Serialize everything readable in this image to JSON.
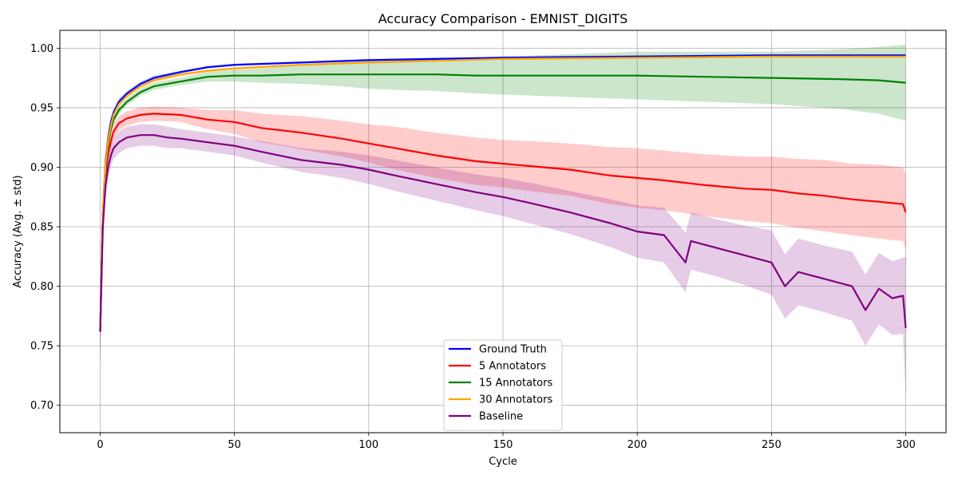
{
  "chart_data": {
    "type": "line",
    "title": "Accuracy Comparison - EMNIST_DIGITS",
    "xlabel": "Cycle",
    "ylabel": "Accuracy (Avg. ± std)",
    "xlim": [
      -15,
      315
    ],
    "ylim": [
      0.677,
      1.015
    ],
    "xticks": [
      0,
      50,
      100,
      150,
      200,
      250,
      300
    ],
    "yticks": [
      0.7,
      0.75,
      0.8,
      0.85,
      0.9,
      0.95,
      1.0
    ],
    "ytick_labels": [
      "0.70",
      "0.75",
      "0.80",
      "0.85",
      "0.90",
      "0.95",
      "1.00"
    ],
    "grid": true,
    "legend_position": "bottom-center",
    "series": [
      {
        "name": "Ground Truth",
        "color": "#0000ff",
        "x": [
          0,
          1,
          2,
          3,
          4,
          5,
          7,
          10,
          15,
          20,
          30,
          40,
          50,
          75,
          100,
          150,
          200,
          250,
          300
        ],
        "values": [
          0.762,
          0.86,
          0.905,
          0.925,
          0.938,
          0.946,
          0.955,
          0.962,
          0.97,
          0.975,
          0.98,
          0.984,
          0.986,
          0.988,
          0.99,
          0.992,
          0.993,
          0.994,
          0.994
        ],
        "std": [
          0.02,
          0.01,
          0.006,
          0.005,
          0.004,
          0.003,
          0.003,
          0.002,
          0.002,
          0.002,
          0.001,
          0.001,
          0.001,
          0.001,
          0.001,
          0.001,
          0.001,
          0.001,
          0.001
        ]
      },
      {
        "name": "5 Annotators",
        "color": "#ff0000",
        "x": [
          0,
          1,
          2,
          3,
          4,
          5,
          7,
          10,
          15,
          20,
          30,
          40,
          50,
          60,
          75,
          90,
          100,
          110,
          125,
          140,
          150,
          160,
          175,
          190,
          200,
          210,
          225,
          240,
          250,
          260,
          270,
          280,
          290,
          299,
          300
        ],
        "values": [
          0.762,
          0.86,
          0.895,
          0.912,
          0.922,
          0.93,
          0.937,
          0.941,
          0.944,
          0.945,
          0.944,
          0.94,
          0.938,
          0.933,
          0.929,
          0.924,
          0.92,
          0.916,
          0.91,
          0.905,
          0.903,
          0.901,
          0.898,
          0.893,
          0.891,
          0.889,
          0.885,
          0.882,
          0.881,
          0.878,
          0.876,
          0.873,
          0.871,
          0.869,
          0.862
        ],
        "std": [
          0.03,
          0.02,
          0.01,
          0.008,
          0.007,
          0.006,
          0.006,
          0.006,
          0.006,
          0.006,
          0.006,
          0.008,
          0.01,
          0.012,
          0.014,
          0.015,
          0.016,
          0.018,
          0.019,
          0.02,
          0.02,
          0.021,
          0.022,
          0.024,
          0.025,
          0.025,
          0.026,
          0.027,
          0.028,
          0.029,
          0.03,
          0.03,
          0.031,
          0.031,
          0.032
        ]
      },
      {
        "name": "15 Annotators",
        "color": "#008000",
        "x": [
          0,
          1,
          2,
          3,
          4,
          5,
          7,
          10,
          15,
          20,
          30,
          40,
          50,
          60,
          75,
          90,
          100,
          110,
          125,
          140,
          150,
          175,
          200,
          225,
          250,
          275,
          290,
          300
        ],
        "values": [
          0.762,
          0.86,
          0.9,
          0.92,
          0.932,
          0.94,
          0.948,
          0.955,
          0.963,
          0.968,
          0.972,
          0.976,
          0.977,
          0.977,
          0.978,
          0.978,
          0.978,
          0.978,
          0.978,
          0.977,
          0.977,
          0.977,
          0.977,
          0.976,
          0.975,
          0.974,
          0.973,
          0.971
        ],
        "std": [
          0.02,
          0.01,
          0.006,
          0.005,
          0.004,
          0.004,
          0.003,
          0.003,
          0.003,
          0.003,
          0.003,
          0.004,
          0.005,
          0.006,
          0.008,
          0.01,
          0.012,
          0.013,
          0.014,
          0.015,
          0.016,
          0.018,
          0.02,
          0.021,
          0.022,
          0.025,
          0.028,
          0.032
        ]
      },
      {
        "name": "30 Annotators",
        "color": "#ffa500",
        "x": [
          0,
          1,
          2,
          3,
          4,
          5,
          7,
          10,
          15,
          20,
          30,
          40,
          50,
          75,
          100,
          150,
          200,
          250,
          300
        ],
        "values": [
          0.762,
          0.86,
          0.903,
          0.923,
          0.935,
          0.944,
          0.953,
          0.96,
          0.968,
          0.973,
          0.978,
          0.981,
          0.983,
          0.986,
          0.988,
          0.991,
          0.992,
          0.993,
          0.993
        ],
        "std": [
          0.02,
          0.01,
          0.006,
          0.005,
          0.004,
          0.003,
          0.003,
          0.002,
          0.002,
          0.002,
          0.002,
          0.001,
          0.001,
          0.001,
          0.001,
          0.001,
          0.001,
          0.001,
          0.001
        ]
      },
      {
        "name": "Baseline",
        "color": "#800080",
        "x": [
          0,
          1,
          2,
          3,
          4,
          5,
          7,
          10,
          15,
          20,
          25,
          30,
          40,
          50,
          60,
          75,
          90,
          100,
          110,
          125,
          140,
          150,
          160,
          175,
          190,
          200,
          210,
          218,
          220,
          230,
          240,
          250,
          255,
          260,
          270,
          280,
          285,
          290,
          295,
          299,
          300
        ],
        "values": [
          0.762,
          0.85,
          0.885,
          0.9,
          0.91,
          0.916,
          0.921,
          0.925,
          0.927,
          0.927,
          0.925,
          0.924,
          0.921,
          0.918,
          0.913,
          0.906,
          0.902,
          0.898,
          0.893,
          0.886,
          0.879,
          0.875,
          0.87,
          0.862,
          0.853,
          0.846,
          0.843,
          0.82,
          0.838,
          0.832,
          0.826,
          0.82,
          0.8,
          0.812,
          0.806,
          0.8,
          0.78,
          0.798,
          0.79,
          0.792,
          0.765
        ],
        "std": [
          0.03,
          0.02,
          0.012,
          0.01,
          0.009,
          0.009,
          0.009,
          0.009,
          0.009,
          0.009,
          0.009,
          0.008,
          0.008,
          0.008,
          0.009,
          0.01,
          0.011,
          0.012,
          0.013,
          0.014,
          0.015,
          0.016,
          0.017,
          0.018,
          0.02,
          0.022,
          0.023,
          0.025,
          0.024,
          0.024,
          0.025,
          0.027,
          0.027,
          0.028,
          0.028,
          0.029,
          0.03,
          0.03,
          0.031,
          0.032,
          0.06
        ]
      }
    ]
  }
}
